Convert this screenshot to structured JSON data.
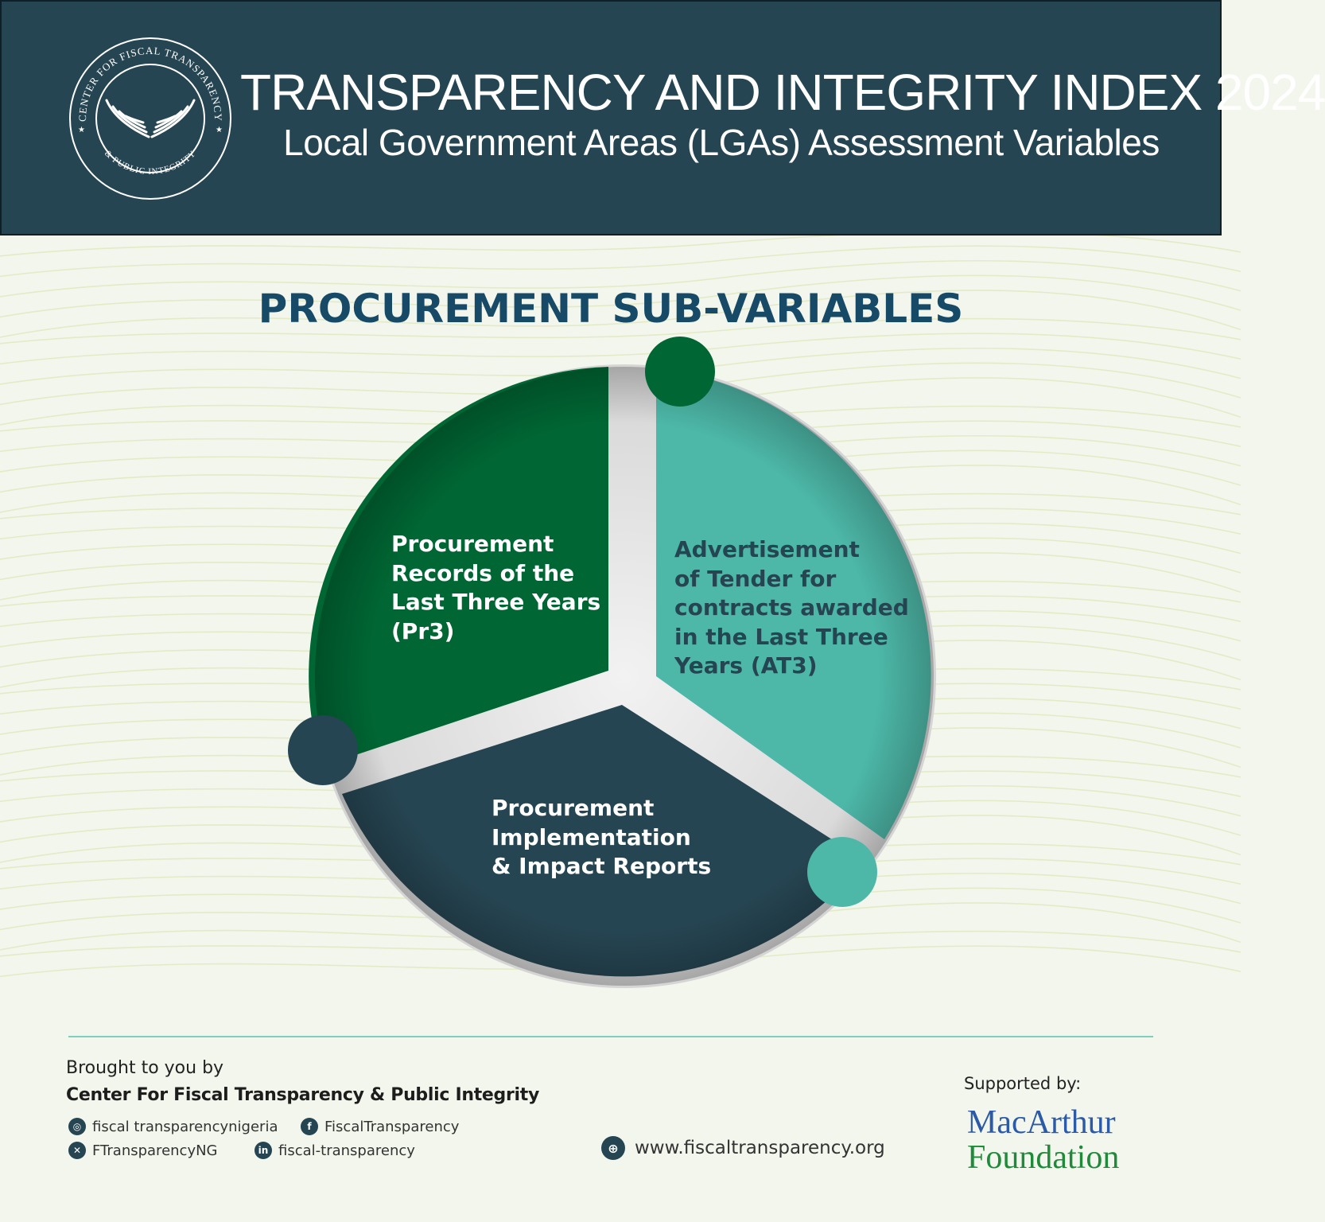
{
  "header": {
    "title": "TRANSPARENCY AND INTEGRITY INDEX 2024",
    "subtitle": "Local Government Areas (LGAs) Assessment Variables",
    "logo": {
      "ring_text_top": "CENTER FOR FISCAL TRANSPARENCY",
      "ring_text_bottom": "& PUBLIC INTEGRITY",
      "icon": "wings-icon"
    }
  },
  "section_title": "PROCUREMENT SUB-VARIABLES",
  "segments": [
    {
      "id": "pr3",
      "lines": [
        "Procurement",
        "Records of the",
        "Last Three Years",
        "(Pr3)"
      ],
      "color": "#006633"
    },
    {
      "id": "at3",
      "lines": [
        "Advertisement",
        "of Tender for",
        "contracts awarded",
        "in the Last Three",
        "Years (AT3)"
      ],
      "color": "#4db8a8"
    },
    {
      "id": "impl",
      "lines": [
        "Procurement",
        "Implementation",
        "& Impact Reports"
      ],
      "color": "#264552"
    }
  ],
  "colors": {
    "header_bg": "#264552",
    "background": "#f3f6ec",
    "title": "#174a67",
    "dark_green": "#006633",
    "teal": "#4db8a8",
    "navy": "#264552"
  },
  "footer": {
    "brought_to_you_by": "Brought to you by",
    "organization": "Center For Fiscal Transparency & Public Integrity",
    "socials": [
      {
        "icon": "instagram-icon",
        "handle": "fiscal transparencynigeria"
      },
      {
        "icon": "facebook-icon",
        "handle": "FiscalTransparency"
      },
      {
        "icon": "x-icon",
        "handle": "FTransparencyNG"
      },
      {
        "icon": "linkedin-icon",
        "handle": "fiscal-transparency"
      }
    ],
    "website": {
      "icon": "globe-icon",
      "url": "www.fiscaltransparency.org"
    },
    "supported_by": "Supported by:",
    "sponsor_line1": "MacArthur",
    "sponsor_line2": "Foundation"
  }
}
